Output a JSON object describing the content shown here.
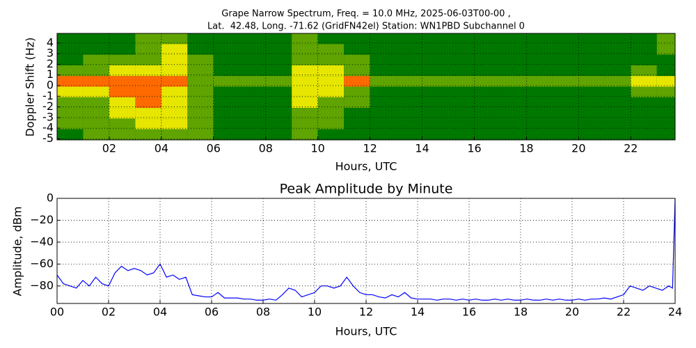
{
  "chart_data": [
    {
      "type": "heatmap",
      "title": "Grape Narrow Spectrum, Freq. = 10.0 MHz, 2025-06-03T00-00 ,",
      "subtitle": "Lat.  42.48, Long. -71.62 (GridFN42el) Station: WN1PBD Subchannel 0",
      "xlabel": "Hours, UTC",
      "ylabel": "Doppler Shift (Hz)",
      "xlim": [
        0,
        23.7
      ],
      "ylim": [
        -5.1,
        4.9
      ],
      "xticks": [
        {
          "value": 2,
          "label": "02"
        },
        {
          "value": 4,
          "label": "04"
        },
        {
          "value": 6,
          "label": "06"
        },
        {
          "value": 8,
          "label": "08"
        },
        10,
        12,
        14,
        16,
        18,
        20,
        22
      ],
      "yticks": [
        4,
        3,
        2,
        1,
        0,
        -1,
        -2,
        -3,
        -4,
        -5
      ],
      "grid": true,
      "x_edges": [
        0,
        1,
        2,
        3,
        4,
        5,
        6,
        7,
        8,
        9,
        10,
        11,
        12,
        13,
        14,
        15,
        16,
        17,
        18,
        19,
        20,
        21,
        22,
        23,
        24
      ],
      "y_edges": [
        4.9,
        3.9,
        2.9,
        1.9,
        0.9,
        -0.1,
        -1.1,
        -2.1,
        -3.1,
        -4.1,
        -5.1
      ],
      "colorscale": [
        "#007800",
        "#5fa400",
        "#e6e600",
        "#ff6a00"
      ],
      "z": [
        [
          0,
          0,
          0,
          1,
          1,
          0,
          0,
          0,
          0,
          1,
          0,
          0,
          0,
          0,
          0,
          0,
          0,
          0,
          0,
          0,
          0,
          0,
          0,
          1
        ],
        [
          0,
          0,
          0,
          1,
          2,
          0,
          0,
          0,
          0,
          1,
          1,
          0,
          0,
          0,
          0,
          0,
          0,
          0,
          0,
          0,
          0,
          0,
          0,
          1
        ],
        [
          0,
          1,
          1,
          1,
          2,
          1,
          0,
          0,
          0,
          1,
          1,
          1,
          0,
          0,
          0,
          0,
          0,
          0,
          0,
          0,
          0,
          0,
          0,
          0
        ],
        [
          1,
          1,
          2,
          2,
          2,
          1,
          0,
          0,
          0,
          2,
          2,
          1,
          0,
          0,
          0,
          0,
          0,
          0,
          0,
          0,
          0,
          0,
          1,
          0
        ],
        [
          3,
          3,
          3,
          3,
          3,
          1,
          1,
          1,
          1,
          2,
          2,
          3,
          1,
          1,
          1,
          1,
          1,
          1,
          1,
          1,
          1,
          1,
          2,
          2
        ],
        [
          2,
          2,
          3,
          3,
          2,
          1,
          0,
          0,
          0,
          2,
          2,
          1,
          0,
          0,
          0,
          0,
          0,
          0,
          0,
          0,
          0,
          0,
          1,
          1
        ],
        [
          1,
          1,
          2,
          3,
          2,
          1,
          0,
          0,
          0,
          2,
          1,
          1,
          0,
          0,
          0,
          0,
          0,
          0,
          0,
          0,
          0,
          0,
          0,
          0
        ],
        [
          1,
          1,
          2,
          2,
          2,
          1,
          0,
          0,
          0,
          1,
          1,
          0,
          0,
          0,
          0,
          0,
          0,
          0,
          0,
          0,
          0,
          0,
          0,
          0
        ],
        [
          1,
          1,
          1,
          2,
          2,
          1,
          0,
          0,
          0,
          1,
          1,
          0,
          0,
          0,
          0,
          0,
          0,
          0,
          0,
          0,
          0,
          0,
          0,
          0
        ],
        [
          0,
          1,
          1,
          1,
          1,
          1,
          0,
          0,
          0,
          1,
          0,
          0,
          0,
          0,
          0,
          0,
          0,
          0,
          0,
          0,
          0,
          0,
          0,
          0
        ]
      ]
    },
    {
      "type": "line",
      "title": "Peak Amplitude by Minute",
      "xlabel": "Hours, UTC",
      "ylabel": "Amplitude, dBm",
      "xlim": [
        0,
        24
      ],
      "ylim": [
        -96,
        0
      ],
      "xticks": [
        {
          "value": 0,
          "label": "00"
        },
        {
          "value": 2,
          "label": "02"
        },
        {
          "value": 4,
          "label": "04"
        },
        {
          "value": 6,
          "label": "06"
        },
        {
          "value": 8,
          "label": "08"
        },
        10,
        12,
        14,
        16,
        18,
        20,
        22,
        24
      ],
      "yticks": [
        0,
        {
          "value": -20,
          "label": "−20"
        },
        {
          "value": -40,
          "label": "−40"
        },
        {
          "value": -60,
          "label": "−60"
        },
        {
          "value": -80,
          "label": "−80"
        }
      ],
      "grid": true,
      "x": [
        0,
        0.25,
        0.5,
        0.75,
        1,
        1.25,
        1.5,
        1.75,
        2,
        2.25,
        2.5,
        2.75,
        3,
        3.25,
        3.5,
        3.75,
        4,
        4.25,
        4.5,
        4.75,
        5,
        5.25,
        5.5,
        5.75,
        6,
        6.25,
        6.5,
        6.75,
        7,
        7.25,
        7.5,
        7.75,
        8,
        8.25,
        8.5,
        8.75,
        9,
        9.25,
        9.5,
        9.75,
        10,
        10.25,
        10.5,
        10.75,
        11,
        11.25,
        11.5,
        11.75,
        12,
        12.25,
        12.5,
        12.75,
        13,
        13.25,
        13.5,
        13.75,
        14,
        14.25,
        14.5,
        14.75,
        15,
        15.25,
        15.5,
        15.75,
        16,
        16.25,
        16.5,
        16.75,
        17,
        17.25,
        17.5,
        17.75,
        18,
        18.25,
        18.5,
        18.75,
        19,
        19.25,
        19.5,
        19.75,
        20,
        20.25,
        20.5,
        20.75,
        21,
        21.25,
        21.5,
        21.75,
        22,
        22.25,
        22.5,
        22.75,
        23,
        23.25,
        23.5,
        23.75,
        23.9,
        24
      ],
      "series": [
        {
          "name": "Peak Amplitude",
          "color": "#0000ff",
          "values": [
            -70,
            -78,
            -80,
            -82,
            -75,
            -80,
            -72,
            -78,
            -80,
            -68,
            -62,
            -66,
            -64,
            -66,
            -70,
            -68,
            -60,
            -72,
            -70,
            -74,
            -72,
            -88,
            -89,
            -90,
            -90,
            -86,
            -91,
            -91,
            -91,
            -92,
            -92,
            -93,
            -93,
            -92,
            -93,
            -88,
            -82,
            -84,
            -90,
            -88,
            -86,
            -80,
            -80,
            -82,
            -80,
            -72,
            -80,
            -86,
            -88,
            -88,
            -90,
            -91,
            -88,
            -90,
            -86,
            -91,
            -92,
            -92,
            -92,
            -93,
            -92,
            -92,
            -93,
            -92,
            -93,
            -92,
            -93,
            -93,
            -92,
            -93,
            -92,
            -93,
            -93,
            -92,
            -93,
            -93,
            -92,
            -93,
            -92,
            -93,
            -93,
            -92,
            -93,
            -92,
            -92,
            -91,
            -92,
            -90,
            -88,
            -80,
            -82,
            -84,
            -80,
            -82,
            -84,
            -80,
            -82,
            0
          ]
        }
      ]
    }
  ]
}
